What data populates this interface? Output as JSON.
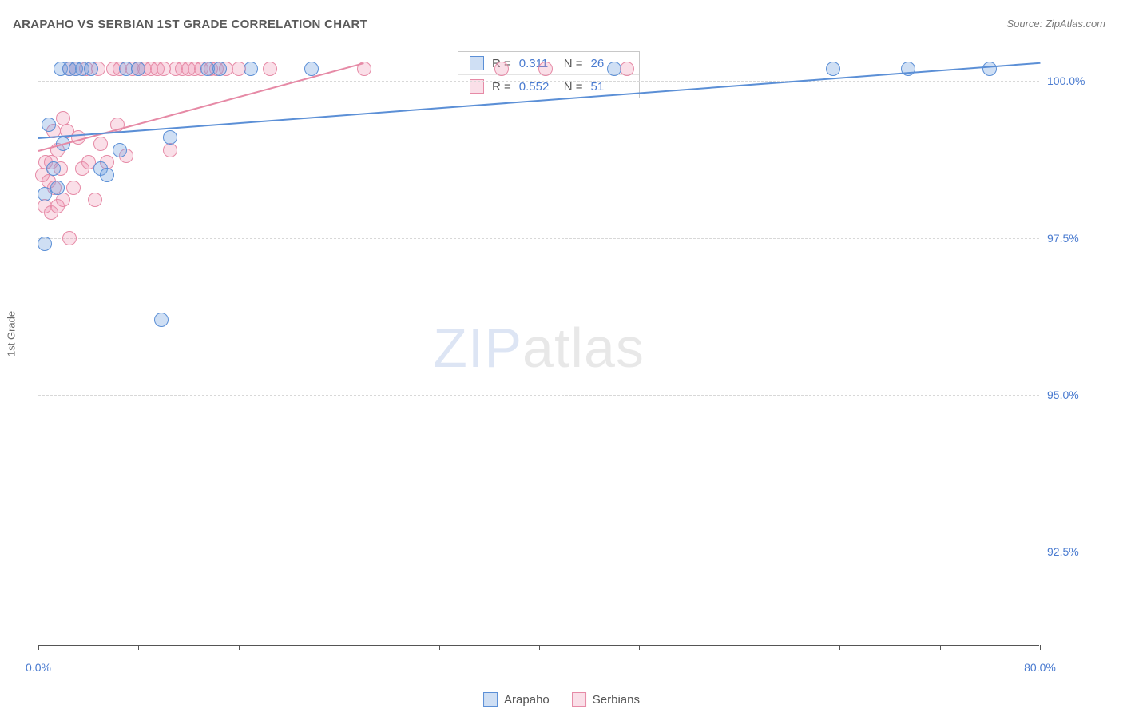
{
  "title": "ARAPAHO VS SERBIAN 1ST GRADE CORRELATION CHART",
  "source": "Source: ZipAtlas.com",
  "y_axis_title": "1st Grade",
  "watermark": {
    "a": "ZIP",
    "b": "atlas"
  },
  "colors": {
    "blue_stroke": "#5b8fd6",
    "blue_fill": "rgba(118,164,223,0.35)",
    "pink_stroke": "#e68aa6",
    "pink_fill": "rgba(240,150,180,0.30)",
    "axis_label": "#4a7bd0",
    "grid": "#d8d8d8",
    "text": "#5a5a5a"
  },
  "chart": {
    "type": "scatter",
    "xlim": [
      0,
      80
    ],
    "ylim": [
      91,
      100.5
    ],
    "y_ticks": [
      92.5,
      95.0,
      97.5,
      100.0
    ],
    "y_tick_labels": [
      "92.5%",
      "95.0%",
      "97.5%",
      "100.0%"
    ],
    "x_ticks": [
      0,
      8,
      16,
      24,
      32,
      40,
      48,
      56,
      64,
      72,
      80
    ],
    "x_tick_labels": {
      "0": "0.0%",
      "80": "80.0%"
    },
    "marker_radius": 9,
    "marker_stroke_width": 1.2
  },
  "series": {
    "arapaho": {
      "label": "Arapaho",
      "color_stroke": "#5b8fd6",
      "color_fill": "rgba(118,164,223,0.35)",
      "R": "0.311",
      "N": "26",
      "trend": {
        "x1": 0,
        "y1": 99.1,
        "x2": 80,
        "y2": 100.3
      },
      "points": [
        [
          0.5,
          97.4
        ],
        [
          0.5,
          98.2
        ],
        [
          0.8,
          99.3
        ],
        [
          1.2,
          98.6
        ],
        [
          1.5,
          98.3
        ],
        [
          1.8,
          100.2
        ],
        [
          2.0,
          99.0
        ],
        [
          2.5,
          100.2
        ],
        [
          3.0,
          100.2
        ],
        [
          3.5,
          100.2
        ],
        [
          4.2,
          100.2
        ],
        [
          5.0,
          98.6
        ],
        [
          5.5,
          98.5
        ],
        [
          6.5,
          98.9
        ],
        [
          7.0,
          100.2
        ],
        [
          8.0,
          100.2
        ],
        [
          9.8,
          96.2
        ],
        [
          10.5,
          99.1
        ],
        [
          13.5,
          100.2
        ],
        [
          14.5,
          100.2
        ],
        [
          17.0,
          100.2
        ],
        [
          21.8,
          100.2
        ],
        [
          46.0,
          100.2
        ],
        [
          63.5,
          100.2
        ],
        [
          69.5,
          100.2
        ],
        [
          76.0,
          100.2
        ]
      ]
    },
    "serbians": {
      "label": "Serbians",
      "color_stroke": "#e68aa6",
      "color_fill": "rgba(240,150,180,0.30)",
      "R": "0.552",
      "N": "51",
      "trend": {
        "x1": 0,
        "y1": 98.9,
        "x2": 26,
        "y2": 100.3
      },
      "points": [
        [
          0.3,
          98.5
        ],
        [
          0.5,
          98.0
        ],
        [
          0.6,
          98.7
        ],
        [
          0.8,
          98.4
        ],
        [
          1.0,
          97.9
        ],
        [
          1.0,
          98.7
        ],
        [
          1.2,
          99.2
        ],
        [
          1.3,
          98.3
        ],
        [
          1.5,
          98.9
        ],
        [
          1.5,
          98.0
        ],
        [
          1.8,
          98.6
        ],
        [
          2.0,
          99.4
        ],
        [
          2.0,
          98.1
        ],
        [
          2.3,
          99.2
        ],
        [
          2.5,
          100.2
        ],
        [
          2.5,
          97.5
        ],
        [
          2.8,
          98.3
        ],
        [
          3.0,
          100.2
        ],
        [
          3.2,
          99.1
        ],
        [
          3.5,
          98.6
        ],
        [
          3.8,
          100.2
        ],
        [
          4.0,
          98.7
        ],
        [
          4.5,
          98.1
        ],
        [
          4.8,
          100.2
        ],
        [
          5.0,
          99.0
        ],
        [
          5.5,
          98.7
        ],
        [
          6.0,
          100.2
        ],
        [
          6.3,
          99.3
        ],
        [
          6.5,
          100.2
        ],
        [
          7.0,
          98.8
        ],
        [
          7.5,
          100.2
        ],
        [
          8.0,
          100.2
        ],
        [
          8.5,
          100.2
        ],
        [
          9.0,
          100.2
        ],
        [
          9.5,
          100.2
        ],
        [
          10.0,
          100.2
        ],
        [
          10.5,
          98.9
        ],
        [
          11.0,
          100.2
        ],
        [
          11.5,
          100.2
        ],
        [
          12.0,
          100.2
        ],
        [
          12.5,
          100.2
        ],
        [
          13.0,
          100.2
        ],
        [
          13.8,
          100.2
        ],
        [
          14.2,
          100.2
        ],
        [
          15.0,
          100.2
        ],
        [
          16.0,
          100.2
        ],
        [
          18.5,
          100.2
        ],
        [
          26.0,
          100.2
        ],
        [
          37.0,
          100.2
        ],
        [
          40.5,
          100.2
        ],
        [
          47.0,
          100.2
        ]
      ]
    }
  },
  "legend_labels": {
    "R": "R =",
    "N": "N ="
  }
}
